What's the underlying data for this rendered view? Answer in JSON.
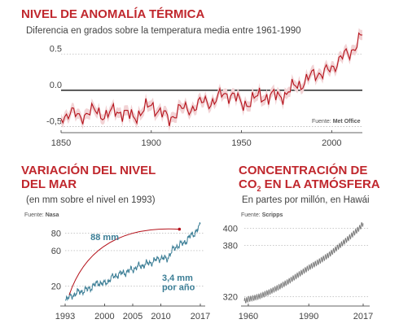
{
  "chart_data": [
    {
      "type": "line",
      "title": "NIVEL DE ANOMALÍA TÉRMICA",
      "subtitle": "Diferencia en grados sobre la temperatura media entre 1961-1990",
      "source_label": "Fuente:",
      "source_name": "Met Office",
      "x_ticks": [
        "1850",
        "1900",
        "1950",
        "2000"
      ],
      "y_ticks": [
        "0.5",
        "0.0",
        "-0,5"
      ],
      "x_tick_values": [
        1850,
        1900,
        1950,
        2000
      ],
      "y_tick_values": [
        0.5,
        0.0,
        -0.5
      ],
      "xlim": [
        1850,
        2017
      ],
      "ylim": [
        -0.55,
        0.85
      ],
      "colors": {
        "line": "#b5121b",
        "band": "#f2d3d5"
      },
      "x": [
        1850,
        1855,
        1860,
        1865,
        1870,
        1875,
        1880,
        1885,
        1890,
        1895,
        1900,
        1905,
        1910,
        1915,
        1920,
        1925,
        1930,
        1935,
        1940,
        1945,
        1950,
        1955,
        1960,
        1965,
        1970,
        1975,
        1980,
        1985,
        1990,
        1995,
        2000,
        2005,
        2010,
        2015,
        2017
      ],
      "values": [
        -0.38,
        -0.3,
        -0.37,
        -0.31,
        -0.28,
        -0.36,
        -0.27,
        -0.32,
        -0.37,
        -0.29,
        -0.2,
        -0.3,
        -0.41,
        -0.26,
        -0.26,
        -0.22,
        -0.14,
        -0.17,
        -0.03,
        -0.08,
        -0.17,
        -0.18,
        -0.05,
        -0.12,
        -0.05,
        -0.08,
        0.1,
        0.08,
        0.25,
        0.22,
        0.3,
        0.45,
        0.5,
        0.7,
        0.75
      ]
    },
    {
      "type": "line",
      "title": "VARIACIÓN DEL NIVEL DEL MAR",
      "subtitle": "(en mm sobre el nivel en 1993)",
      "source_label": "Fuente:",
      "source_name": "Nasa",
      "x_ticks": [
        "1993",
        "2000",
        "2005",
        "2010",
        "2017"
      ],
      "y_ticks": [
        "80",
        "60",
        "20"
      ],
      "x_tick_values": [
        1993,
        2000,
        2005,
        2010,
        2017
      ],
      "y_tick_values": [
        80,
        60,
        20
      ],
      "xlim": [
        1993,
        2017
      ],
      "ylim": [
        0,
        95
      ],
      "colors": {
        "line": "#3a7d95",
        "arrow": "#b5121b"
      },
      "annotations": [
        "88 mm",
        "3,4 mm",
        "por año"
      ],
      "x": [
        1993,
        1994,
        1995,
        1996,
        1997,
        1998,
        1999,
        2000,
        2001,
        2002,
        2003,
        2004,
        2005,
        2006,
        2007,
        2008,
        2009,
        2010,
        2011,
        2012,
        2013,
        2014,
        2015,
        2016,
        2017
      ],
      "values": [
        5,
        8,
        12,
        14,
        16,
        20,
        24,
        22,
        28,
        32,
        34,
        36,
        39,
        42,
        44,
        46,
        49,
        52,
        50,
        60,
        66,
        68,
        75,
        80,
        88
      ]
    },
    {
      "type": "line",
      "title": "CONCENTRACIÓN DE CO₂ EN LA ATMÓSFERA",
      "title_line1": "CONCENTRACIÓN DE",
      "title_line2_pre": "CO",
      "title_line2_sub": "2",
      "title_line2_post": " EN LA ATMÓSFERA",
      "subtitle": "En partes por millón, en Hawái",
      "source_label": "Fuente:",
      "source_name": "Scripps",
      "x_ticks": [
        "1960",
        "1990",
        "2017"
      ],
      "y_ticks": [
        "400",
        "380",
        "320"
      ],
      "x_tick_values": [
        1960,
        1990,
        2017
      ],
      "y_tick_values": [
        400,
        380,
        320
      ],
      "xlim": [
        1958,
        2017
      ],
      "ylim": [
        312,
        412
      ],
      "colors": {
        "line": "#777777"
      },
      "x": [
        1958,
        1960,
        1965,
        1970,
        1975,
        1980,
        1985,
        1990,
        1995,
        2000,
        2005,
        2010,
        2015,
        2017
      ],
      "values": [
        315,
        317,
        320,
        325,
        331,
        338,
        346,
        354,
        361,
        369,
        379,
        389,
        400,
        406
      ]
    }
  ]
}
